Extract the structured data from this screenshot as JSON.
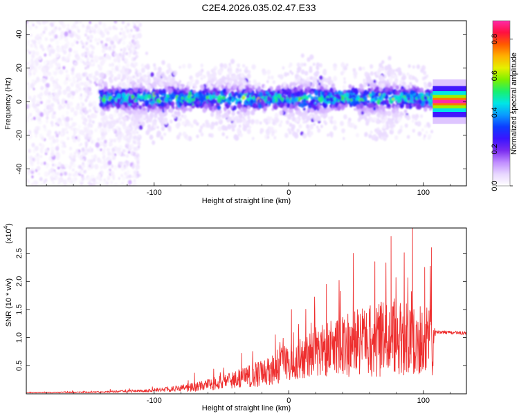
{
  "title": "C2E4.2026.035.02.47.E33",
  "chart_data": [
    {
      "type": "heatmap",
      "xlabel": "Height of straight line (km)",
      "ylabel": "Frequency (Hz)",
      "xlim": [
        -195,
        132
      ],
      "ylim": [
        -50,
        48
      ],
      "xticks": [
        -100,
        0,
        100
      ],
      "yticks": [
        -40,
        -20,
        0,
        20,
        40
      ],
      "colorbar": {
        "label": "Normalized spectral amplitude",
        "range": [
          0,
          0.9
        ],
        "ticks": [
          "0.0",
          "0.2",
          "0.4",
          "0.6",
          "0.8"
        ],
        "colors": [
          "#ffffff",
          "#e8d7ff",
          "#c08cff",
          "#7a2cf0",
          "#3a14ff",
          "#0d3cff",
          "#0a9aff",
          "#00e6e6",
          "#19f06e",
          "#7cf000",
          "#e6f000",
          "#ffb000",
          "#ff5a00",
          "#ff1040",
          "#ff2aa8"
        ]
      },
      "features": [
        {
          "name": "scattered noise",
          "x_range": [
            -195,
            -110
          ],
          "frequency_range": [
            -50,
            48
          ],
          "amplitude": 0.05
        },
        {
          "name": "signal band",
          "x_range": [
            -140,
            107
          ],
          "frequency_center": 2,
          "frequency_halfwidth": 8,
          "amplitude_peak": 0.7
        },
        {
          "name": "reference tone",
          "x_range": [
            107,
            132
          ],
          "frequency": 0,
          "amplitude": 0.9
        }
      ]
    },
    {
      "type": "line",
      "xlabel": "Height of straight line (km)",
      "ylabel": "SNR (10 * v/v)",
      "multiplier": "(x10",
      "multiplier_exponent": "4",
      "multiplier_close": ")",
      "xlim": [
        -195,
        132
      ],
      "ylim": [
        0,
        2.95
      ],
      "xticks": [
        -100,
        0,
        100
      ],
      "yticks": [
        "0.5",
        "1.0",
        "1.5",
        "2.0",
        "2.5"
      ],
      "color": "#ee2e2e",
      "envelope": [
        {
          "x": -195,
          "mean": 0.02,
          "spread": 0.005
        },
        {
          "x": -140,
          "mean": 0.03,
          "spread": 0.015
        },
        {
          "x": -100,
          "mean": 0.06,
          "spread": 0.03
        },
        {
          "x": -70,
          "mean": 0.12,
          "spread": 0.08
        },
        {
          "x": -40,
          "mean": 0.25,
          "spread": 0.15
        },
        {
          "x": -20,
          "mean": 0.38,
          "spread": 0.25
        },
        {
          "x": 0,
          "mean": 0.55,
          "spread": 0.35
        },
        {
          "x": 20,
          "mean": 0.75,
          "spread": 0.45
        },
        {
          "x": 40,
          "mean": 0.85,
          "spread": 0.55
        },
        {
          "x": 60,
          "mean": 0.95,
          "spread": 0.65
        },
        {
          "x": 80,
          "mean": 1.0,
          "spread": 0.7
        },
        {
          "x": 100,
          "mean": 0.95,
          "spread": 0.6
        },
        {
          "x": 107,
          "mean": 0.9,
          "spread": 0.6
        },
        {
          "x": 109,
          "mean": 1.1,
          "spread": 0.03
        },
        {
          "x": 132,
          "mean": 1.08,
          "spread": 0.03
        }
      ],
      "peaks": [
        {
          "x": -70,
          "y": 0.37
        },
        {
          "x": -35,
          "y": 0.72
        },
        {
          "x": -10,
          "y": 1.05
        },
        {
          "x": 2,
          "y": 1.5
        },
        {
          "x": 28,
          "y": 1.95
        },
        {
          "x": 48,
          "y": 2.5
        },
        {
          "x": 64,
          "y": 2.35
        },
        {
          "x": 76,
          "y": 2.8
        },
        {
          "x": 92,
          "y": 2.95
        },
        {
          "x": 101,
          "y": 2.25
        },
        {
          "x": 106,
          "y": 2.6
        }
      ]
    }
  ]
}
